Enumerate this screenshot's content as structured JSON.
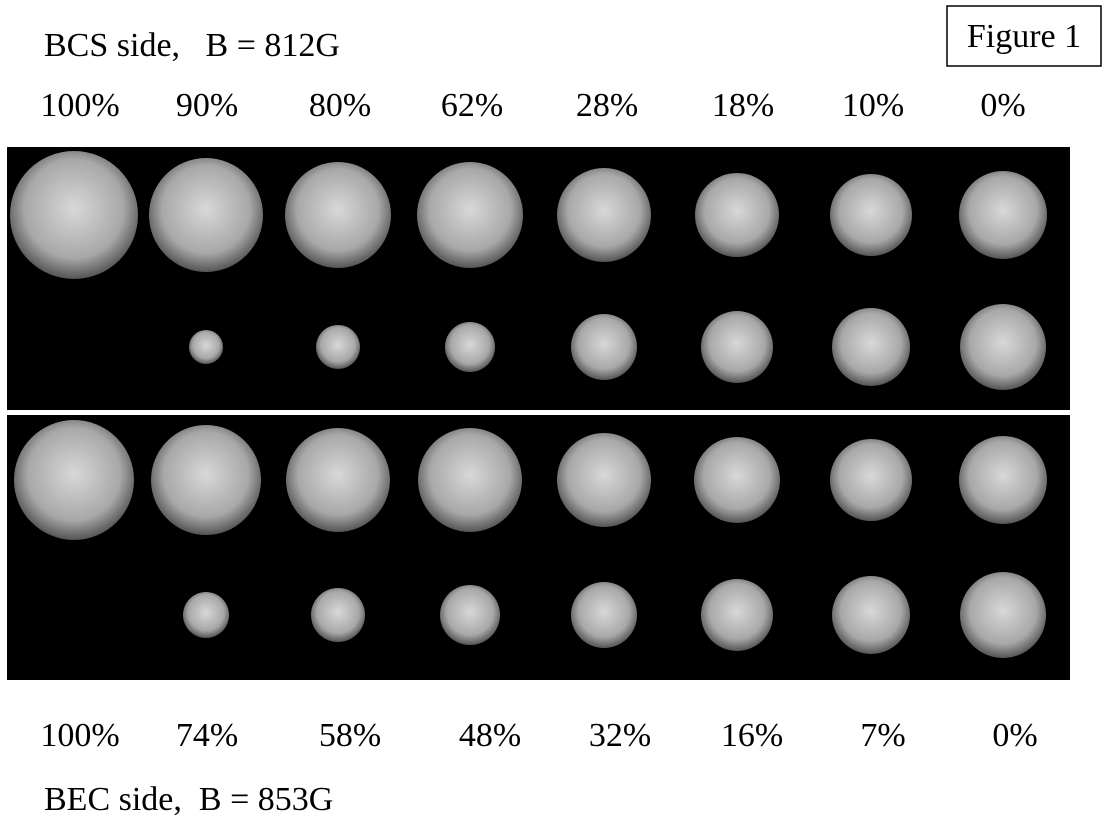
{
  "figure": {
    "label": "Figure 1",
    "top": {
      "title": "BCS side,   B = 812G",
      "labels": [
        "100%",
        "90%",
        "80%",
        "62%",
        "28%",
        "18%",
        "10%",
        "0%"
      ]
    },
    "bottom": {
      "title": "BEC side,  B = 853G",
      "labels": [
        "100%",
        "74%",
        "58%",
        "48%",
        "32%",
        "16%",
        "7%",
        "0%"
      ]
    }
  }
}
